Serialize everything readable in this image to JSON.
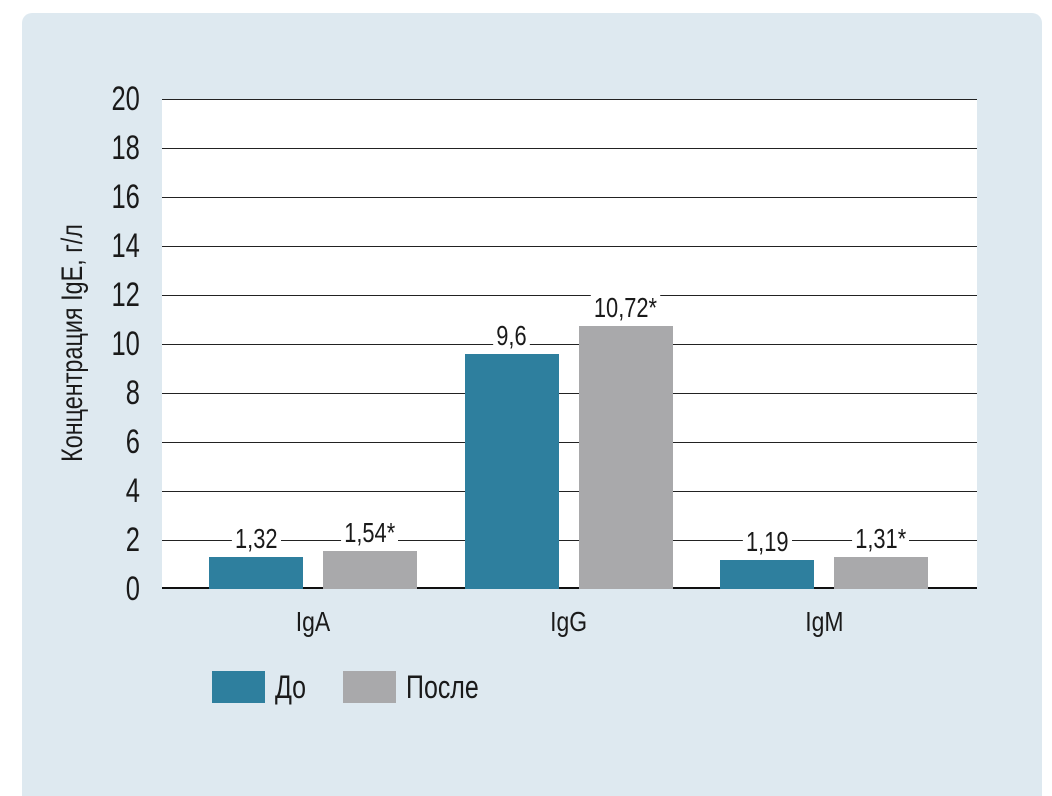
{
  "figure": {
    "page_background": "#ffffff",
    "panel_background": "#dee9f0",
    "plot_background": "#ffffff",
    "gridline_color": "#222222",
    "axis_line_color": "#101010",
    "text_color": "#1a1a1a"
  },
  "chart_data": {
    "type": "bar",
    "title": "",
    "xlabel": "",
    "ylabel": "Концентрация IgE, г/л",
    "categories": [
      "IgA",
      "IgG",
      "IgM"
    ],
    "series": [
      {
        "name": "До",
        "color": "#2e7f9e",
        "values": [
          1.32,
          9.6,
          1.19
        ],
        "value_labels": [
          "1,32",
          "9,6",
          "1,19"
        ]
      },
      {
        "name": "После",
        "color": "#a9a9ab",
        "values": [
          1.54,
          10.72,
          1.31
        ],
        "value_labels": [
          "1,54*",
          "10,72*",
          "1,31*"
        ]
      }
    ],
    "ylim": [
      0,
      20
    ],
    "yticks": [
      0,
      2,
      4,
      6,
      8,
      10,
      12,
      14,
      16,
      18,
      20
    ],
    "grid": "horizontal",
    "legend_position": "bottom-left"
  }
}
